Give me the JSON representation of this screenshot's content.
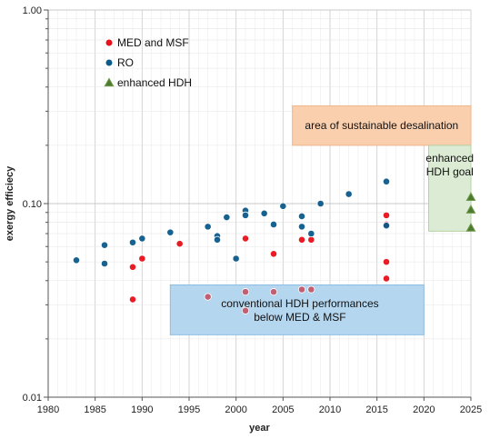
{
  "chart_data": {
    "type": "scatter",
    "title": "",
    "xlabel": "year",
    "ylabel": "exergy efficiecy",
    "xlim": [
      1980,
      2025
    ],
    "ylim": [
      0.01,
      1.0
    ],
    "yscale": "log",
    "x_ticks": [
      1980,
      1985,
      1990,
      1995,
      2000,
      2005,
      2010,
      2015,
      2020,
      2025
    ],
    "y_ticks": [
      {
        "value": 0.01,
        "label": "0.01"
      },
      {
        "value": 0.1,
        "label": "0.10"
      },
      {
        "value": 1.0,
        "label": "1.00"
      }
    ],
    "grid": true,
    "legend_position": "top-left",
    "series": [
      {
        "name": "MED and MSF",
        "color": "#e8101a",
        "marker": "circle",
        "points": [
          {
            "x": 1989,
            "y": 0.047
          },
          {
            "x": 1989,
            "y": 0.032
          },
          {
            "x": 1990,
            "y": 0.052
          },
          {
            "x": 1994,
            "y": 0.062
          },
          {
            "x": 2001,
            "y": 0.066
          },
          {
            "x": 2004,
            "y": 0.055
          },
          {
            "x": 2007,
            "y": 0.065
          },
          {
            "x": 2008,
            "y": 0.065
          },
          {
            "x": 2016,
            "y": 0.087
          },
          {
            "x": 2016,
            "y": 0.078
          },
          {
            "x": 2016,
            "y": 0.05
          },
          {
            "x": 2016,
            "y": 0.041
          }
        ]
      },
      {
        "name": "RO",
        "color": "#0b5a8a",
        "marker": "circle",
        "points": [
          {
            "x": 1983,
            "y": 0.051
          },
          {
            "x": 1986,
            "y": 0.061
          },
          {
            "x": 1986,
            "y": 0.049
          },
          {
            "x": 1989,
            "y": 0.063
          },
          {
            "x": 1990,
            "y": 0.066
          },
          {
            "x": 1993,
            "y": 0.071
          },
          {
            "x": 1997,
            "y": 0.076
          },
          {
            "x": 1998,
            "y": 0.068
          },
          {
            "x": 1998,
            "y": 0.065
          },
          {
            "x": 1999,
            "y": 0.085
          },
          {
            "x": 2000,
            "y": 0.052
          },
          {
            "x": 2001,
            "y": 0.092
          },
          {
            "x": 2001,
            "y": 0.087
          },
          {
            "x": 2003,
            "y": 0.089
          },
          {
            "x": 2004,
            "y": 0.078
          },
          {
            "x": 2005,
            "y": 0.097
          },
          {
            "x": 2007,
            "y": 0.086
          },
          {
            "x": 2007,
            "y": 0.076
          },
          {
            "x": 2008,
            "y": 0.07
          },
          {
            "x": 2009,
            "y": 0.1
          },
          {
            "x": 2012,
            "y": 0.112
          },
          {
            "x": 2016,
            "y": 0.13
          },
          {
            "x": 2016,
            "y": 0.077
          }
        ]
      },
      {
        "name": "conventional HDH",
        "color": "#c25a68",
        "marker": "circle",
        "points": [
          {
            "x": 1997,
            "y": 0.033
          },
          {
            "x": 2001,
            "y": 0.035
          },
          {
            "x": 2001,
            "y": 0.028
          },
          {
            "x": 2004,
            "y": 0.035
          },
          {
            "x": 2007,
            "y": 0.036
          },
          {
            "x": 2008,
            "y": 0.036
          }
        ]
      },
      {
        "name": "enhanced HDH",
        "color": "#4e7a2e",
        "marker": "triangle",
        "points": [
          {
            "x": 2025,
            "y": 0.108
          },
          {
            "x": 2025,
            "y": 0.093
          },
          {
            "x": 2025,
            "y": 0.075
          }
        ]
      }
    ],
    "regions": [
      {
        "label": "area of sustainable desalination",
        "x": [
          2006,
          2025
        ],
        "y": [
          0.2,
          0.32
        ],
        "fill": "#f9cfae",
        "stroke": "#f2b58a"
      },
      {
        "label": "enhanced HDH goal",
        "x": [
          2020.5,
          2025
        ],
        "y": [
          0.072,
          0.2
        ],
        "fill": "#dcebd3",
        "stroke": "#b6d3a6"
      },
      {
        "label": "conventional HDH performances below MED & MSF",
        "x": [
          1993,
          2020
        ],
        "y": [
          0.021,
          0.038
        ],
        "fill": "#b5d6ef",
        "stroke": "#8dbde2"
      }
    ]
  }
}
